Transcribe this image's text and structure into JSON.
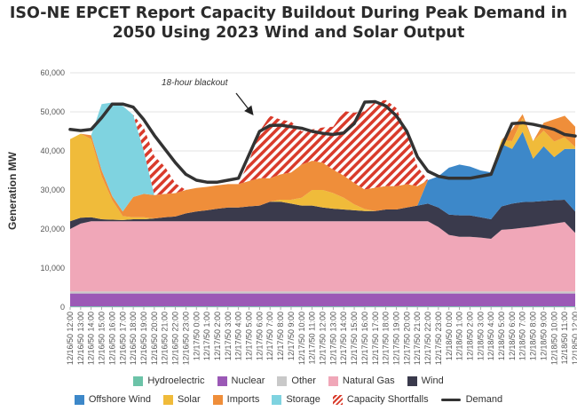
{
  "chart_data": {
    "type": "area",
    "title_line1": "ISO-NE EPCET Report Capacity Buildout During Peak Demand in",
    "title_line2": "2050 Using 2023 Wind and Solar Output",
    "ylabel": "Generation MW",
    "ylim": [
      0,
      60000
    ],
    "yticks": [
      "0",
      "10,000",
      "20,000",
      "30,000",
      "40,000",
      "50,000",
      "60,000"
    ],
    "annotation": "18-hour blackout",
    "categories": [
      "12/16/50 12:00",
      "12/16/50 13:00",
      "12/16/50 14:00",
      "12/16/50 15:00",
      "12/16/50 16:00",
      "12/16/50 17:00",
      "12/16/50 18:00",
      "12/16/50 19:00",
      "12/16/50 20:00",
      "12/16/50 21:00",
      "12/16/50 22:00",
      "12/16/50 23:00",
      "12/17/50 0:00",
      "12/17/50 1:00",
      "12/17/50 2:00",
      "12/17/50 3:00",
      "12/17/50 4:00",
      "12/17/50 5:00",
      "12/17/50 6:00",
      "12/17/50 7:00",
      "12/17/50 8:00",
      "12/17/50 9:00",
      "12/17/50 10:00",
      "12/17/50 11:00",
      "12/17/50 12:00",
      "12/17/50 13:00",
      "12/17/50 14:00",
      "12/17/50 15:00",
      "12/17/50 16:00",
      "12/17/50 17:00",
      "12/17/50 18:00",
      "12/17/50 19:00",
      "12/17/50 20:00",
      "12/17/50 21:00",
      "12/17/50 22:00",
      "12/17/50 23:00",
      "12/18/50 0:00",
      "12/18/50 1:00",
      "12/18/50 2:00",
      "12/18/50 3:00",
      "12/18/50 4:00",
      "12/18/50 5:00",
      "12/18/50 6:00",
      "12/18/50 7:00",
      "12/18/50 8:00",
      "12/18/50 9:00",
      "12/18/50 10:00",
      "12/18/50 11:00",
      "12/18/50 12:00"
    ],
    "series": [
      {
        "name": "Hydroelectric",
        "color": "#6cc3a8",
        "values": [
          200,
          200,
          200,
          200,
          200,
          200,
          200,
          200,
          200,
          200,
          200,
          200,
          200,
          200,
          200,
          200,
          200,
          200,
          200,
          200,
          200,
          200,
          200,
          200,
          200,
          200,
          200,
          200,
          200,
          200,
          200,
          200,
          200,
          200,
          200,
          200,
          200,
          200,
          200,
          200,
          200,
          200,
          200,
          200,
          200,
          200,
          200,
          200,
          200
        ]
      },
      {
        "name": "Nuclear",
        "color": "#9b59b6",
        "values": [
          3300,
          3300,
          3300,
          3300,
          3300,
          3300,
          3300,
          3300,
          3300,
          3300,
          3300,
          3300,
          3300,
          3300,
          3300,
          3300,
          3300,
          3300,
          3300,
          3300,
          3300,
          3300,
          3300,
          3300,
          3300,
          3300,
          3300,
          3300,
          3300,
          3300,
          3300,
          3300,
          3300,
          3300,
          3300,
          3300,
          3300,
          3300,
          3300,
          3300,
          3300,
          3300,
          3300,
          3300,
          3300,
          3300,
          3300,
          3300,
          3300
        ]
      },
      {
        "name": "Other",
        "color": "#c9c9c9",
        "values": [
          500,
          500,
          500,
          500,
          500,
          500,
          500,
          500,
          500,
          500,
          500,
          500,
          500,
          500,
          500,
          500,
          500,
          500,
          500,
          500,
          500,
          500,
          500,
          500,
          500,
          500,
          500,
          500,
          500,
          500,
          500,
          500,
          500,
          500,
          500,
          500,
          500,
          500,
          500,
          500,
          500,
          500,
          500,
          500,
          500,
          500,
          500,
          500,
          500
        ]
      },
      {
        "name": "Natural Gas",
        "color": "#f0a7b8",
        "values": [
          16000,
          17400,
          18000,
          18000,
          18000,
          18000,
          18000,
          18000,
          18000,
          18000,
          18000,
          18000,
          18000,
          18000,
          18000,
          18000,
          18000,
          18000,
          18000,
          18000,
          18000,
          18000,
          18000,
          18000,
          18000,
          18000,
          18000,
          18000,
          18000,
          18000,
          18000,
          18000,
          18000,
          18000,
          18000,
          16500,
          14500,
          14000,
          14000,
          13800,
          13500,
          15800,
          16000,
          16300,
          16600,
          17000,
          17400,
          17800,
          15000
        ]
      },
      {
        "name": "Wind",
        "color": "#3a3a4c",
        "values": [
          2000,
          1500,
          1000,
          500,
          400,
          300,
          500,
          500,
          700,
          1000,
          1200,
          2000,
          2500,
          2800,
          3200,
          3500,
          3500,
          3800,
          4000,
          5000,
          5000,
          4500,
          4000,
          4000,
          3500,
          3200,
          3000,
          2800,
          2600,
          2600,
          3000,
          3000,
          3500,
          4000,
          4500,
          5000,
          5200,
          5500,
          5500,
          5200,
          5000,
          6000,
          6500,
          6600,
          6400,
          6200,
          6000,
          5700,
          5500
        ]
      },
      {
        "name": "Offshore Wind",
        "color": "#3d88c9",
        "values": [
          0,
          0,
          0,
          0,
          0,
          0,
          0,
          0,
          0,
          0,
          0,
          0,
          0,
          0,
          0,
          0,
          0,
          0,
          0,
          0,
          0,
          0,
          0,
          0,
          0,
          0,
          0,
          0,
          0,
          0,
          0,
          0,
          0,
          0,
          6000,
          8000,
          12000,
          13000,
          12500,
          12000,
          12000,
          16000,
          14000,
          18000,
          11000,
          14000,
          11000,
          13000,
          16000
        ]
      },
      {
        "name": "Solar",
        "color": "#f0bb3a",
        "values": [
          21000,
          21500,
          20000,
          11000,
          5000,
          1000,
          500,
          500,
          0,
          0,
          0,
          0,
          0,
          0,
          0,
          0,
          0,
          0,
          0,
          0,
          500,
          1000,
          2000,
          4000,
          4500,
          4000,
          3000,
          1500,
          500,
          0,
          0,
          0,
          0,
          0,
          0,
          0,
          0,
          0,
          0,
          0,
          0,
          1000,
          2000,
          3500,
          4500,
          4000,
          4000,
          3000,
          500
        ]
      },
      {
        "name": "Imports",
        "color": "#ef8e3a",
        "values": [
          0,
          0,
          1000,
          1500,
          1000,
          1200,
          5200,
          6000,
          6000,
          6000,
          6000,
          6000,
          6000,
          6000,
          6000,
          6000,
          6000,
          6500,
          7000,
          6000,
          6500,
          7000,
          8500,
          7500,
          7000,
          6000,
          5700,
          5500,
          5000,
          6000,
          6000,
          6000,
          6000,
          5000,
          0,
          0,
          0,
          0,
          0,
          0,
          0,
          0,
          3000,
          1000,
          0,
          2000,
          5700,
          5500,
          5200
        ]
      },
      {
        "name": "Storage",
        "color": "#7fd3e0",
        "values": [
          0,
          0,
          0,
          17000,
          24000,
          27000,
          21000,
          11000,
          0,
          0,
          0,
          0,
          0,
          0,
          0,
          0,
          0,
          0,
          0,
          0,
          0,
          0,
          0,
          0,
          0,
          0,
          0,
          0,
          0,
          0,
          0,
          0,
          0,
          0,
          0,
          0,
          0,
          0,
          0,
          0,
          0,
          0,
          0,
          0,
          0,
          0,
          0,
          0,
          0
        ]
      },
      {
        "name": "Capacity Shortfalls",
        "color": "#d93b2b",
        "pattern": "hatch",
        "values": [
          0,
          0,
          0,
          0,
          0,
          0,
          0,
          6000,
          10000,
          7000,
          2500,
          0,
          0,
          0,
          0,
          0,
          0,
          5000,
          12000,
          16000,
          14000,
          13000,
          8500,
          8000,
          9000,
          11000,
          16500,
          18000,
          20000,
          22000,
          22000,
          20000,
          13000,
          5000,
          0,
          0,
          0,
          0,
          0,
          0,
          0,
          0,
          0,
          0,
          0,
          0,
          0,
          0,
          0
        ]
      },
      {
        "name": "Demand",
        "color": "#333333",
        "type": "line",
        "values": [
          45500,
          45200,
          45500,
          48500,
          52000,
          52000,
          51200,
          48000,
          44000,
          40500,
          37000,
          34000,
          32500,
          32000,
          32000,
          32500,
          33000,
          39000,
          45000,
          46500,
          46600,
          46200,
          45800,
          45000,
          44500,
          44200,
          44600,
          47000,
          52500,
          52600,
          51500,
          49000,
          45000,
          38500,
          34800,
          33500,
          33000,
          33000,
          33000,
          33500,
          34000,
          41000,
          47000,
          47200,
          46800,
          46200,
          45500,
          44200,
          43800
        ]
      }
    ],
    "legend_row1": [
      "Hydroelectric",
      "Nuclear",
      "Other",
      "Natural Gas",
      "Wind"
    ],
    "legend_row2": [
      "Offshore Wind",
      "Solar",
      "Imports",
      "Storage",
      "Capacity Shortfalls",
      "Demand"
    ]
  }
}
